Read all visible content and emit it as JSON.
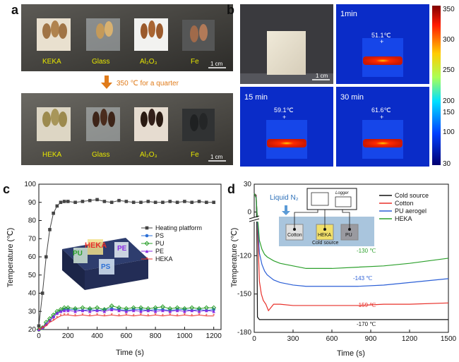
{
  "panels": {
    "a": {
      "letter": "a",
      "top_labels": [
        "KEKA",
        "Glass",
        "Al₂O₃",
        "Fe"
      ],
      "bottom_labels": [
        "HEKA",
        "Glass",
        "Al₂O₃",
        "Fe"
      ],
      "scale_top": "1 cm",
      "scale_bottom": "1 cm",
      "arrow_text": "350 ℃ for a quarter",
      "label_color": "#e6e600",
      "arrow_color": "#e07b1a"
    },
    "b": {
      "letter": "b",
      "scale": "1 cm",
      "images": [
        {
          "time": "1min",
          "temp": "51.1℃"
        },
        {
          "time": "15 min",
          "temp": "59.1℃"
        },
        {
          "time": "30 min",
          "temp": "61.6℃"
        }
      ],
      "colorbar_ticks": [
        "350",
        "300",
        "250",
        "200",
        "150",
        "100",
        "30"
      ]
    },
    "c": {
      "letter": "c",
      "inset_labels": [
        "HEKA",
        "PU",
        "PE",
        "PS"
      ]
    },
    "d": {
      "letter": "d",
      "diagram": {
        "gas": "Liquid N₂",
        "logger": "Logger",
        "samples": [
          "Cotton",
          "HEKA",
          "PU"
        ],
        "base": "Cold source"
      },
      "annotations": [
        "-130 ℃",
        "-143 ℃",
        "-159 ℃",
        "-170 ℃"
      ]
    }
  },
  "chart_data": [
    {
      "type": "line",
      "xlabel": "Time (s)",
      "ylabel": "Temperature (℃)",
      "xlim": [
        0,
        1250
      ],
      "ylim": [
        20,
        100
      ],
      "xticks": [
        0,
        200,
        400,
        600,
        800,
        1000,
        1200
      ],
      "yticks": [
        20,
        30,
        40,
        50,
        60,
        70,
        80,
        90,
        100
      ],
      "legend_position": "right",
      "series": [
        {
          "name": "Heating platform",
          "color": "#444444",
          "marker": "square",
          "x": [
            0,
            25,
            50,
            75,
            100,
            125,
            150,
            175,
            200,
            250,
            300,
            350,
            400,
            450,
            500,
            550,
            600,
            650,
            700,
            750,
            800,
            850,
            900,
            950,
            1000,
            1050,
            1100,
            1150,
            1200
          ],
          "y": [
            22,
            40,
            60,
            75,
            84,
            88,
            90,
            90.5,
            90.5,
            90,
            90.5,
            91,
            91.5,
            90.5,
            90,
            91,
            90.5,
            90,
            90,
            90.5,
            90,
            90,
            90.5,
            90,
            90.5,
            90,
            90.5,
            90,
            90
          ]
        },
        {
          "name": "PS",
          "color": "#2b6fd6",
          "marker": "circle",
          "x": [
            0,
            25,
            50,
            75,
            100,
            125,
            150,
            175,
            200,
            250,
            300,
            350,
            400,
            450,
            500,
            550,
            600,
            650,
            700,
            750,
            800,
            850,
            900,
            950,
            1000,
            1050,
            1100,
            1150,
            1200
          ],
          "y": [
            20,
            21,
            23,
            25,
            27,
            29,
            30,
            31,
            31,
            31,
            30.5,
            31,
            30.5,
            31,
            31.5,
            31,
            30.5,
            31,
            31,
            30.5,
            31,
            31,
            30.5,
            31,
            31,
            30.5,
            31,
            30.5,
            31
          ]
        },
        {
          "name": "PU",
          "color": "#2ca02c",
          "marker": "diamond",
          "x": [
            0,
            25,
            50,
            75,
            100,
            125,
            150,
            175,
            200,
            250,
            300,
            350,
            400,
            450,
            500,
            550,
            600,
            650,
            700,
            750,
            800,
            850,
            900,
            950,
            1000,
            1050,
            1100,
            1150,
            1200
          ],
          "y": [
            20,
            21,
            24,
            26,
            28,
            30,
            31,
            32,
            32,
            31.5,
            32,
            31.5,
            32,
            31,
            33,
            32,
            31.5,
            32,
            32,
            31.5,
            32,
            32.5,
            31.5,
            32,
            31.5,
            32,
            31.5,
            32,
            32
          ]
        },
        {
          "name": "PE",
          "color": "#8a2be2",
          "marker": "triangle",
          "x": [
            0,
            25,
            50,
            75,
            100,
            125,
            150,
            175,
            200,
            250,
            300,
            350,
            400,
            450,
            500,
            550,
            600,
            650,
            700,
            750,
            800,
            850,
            900,
            950,
            1000,
            1050,
            1100,
            1150,
            1200
          ],
          "y": [
            20,
            21,
            23,
            25,
            27,
            29,
            30,
            30.5,
            30.5,
            30,
            30.5,
            30,
            30.5,
            30,
            31,
            30.5,
            30,
            30.5,
            30,
            30.5,
            30,
            30.5,
            30,
            30.5,
            30,
            30.5,
            30,
            30.5,
            30
          ]
        },
        {
          "name": "HEKA",
          "color": "#e8302a",
          "marker": "star",
          "x": [
            0,
            25,
            50,
            75,
            100,
            125,
            150,
            175,
            200,
            250,
            300,
            350,
            400,
            450,
            500,
            550,
            600,
            650,
            700,
            750,
            800,
            850,
            900,
            950,
            1000,
            1050,
            1100,
            1150,
            1200
          ],
          "y": [
            20,
            21,
            22,
            24,
            25,
            26.5,
            27.5,
            28,
            28,
            27.5,
            28,
            27.5,
            28,
            27.5,
            28,
            27.5,
            28,
            27.5,
            28,
            27.5,
            28,
            27.5,
            28,
            27.5,
            28,
            27.5,
            28,
            27.5,
            27.5
          ]
        }
      ]
    },
    {
      "type": "line",
      "xlabel": "Time (s)",
      "ylabel": "Temperature (℃)",
      "xlim": [
        0,
        1500
      ],
      "ylim": [
        -180,
        30
      ],
      "broken_axis": true,
      "xticks": [
        0,
        300,
        600,
        900,
        1200,
        1500
      ],
      "yticks": [
        -180,
        -150,
        -120,
        0,
        30
      ],
      "legend_position": "top-right",
      "series": [
        {
          "name": "Cold source",
          "color": "#111111",
          "x": [
            0,
            15,
            20,
            25,
            40,
            60,
            100,
            200,
            400,
            600,
            800,
            1000,
            1200,
            1500
          ],
          "y": [
            20,
            18,
            -90,
            -168,
            -170,
            -170,
            -170,
            -170,
            -170,
            -170,
            -170,
            -170,
            -170,
            -170
          ]
        },
        {
          "name": "Cotton",
          "color": "#e8302a",
          "x": [
            0,
            15,
            25,
            30,
            40,
            55,
            70,
            90,
            110,
            150,
            200,
            300,
            400,
            600,
            800,
            1000,
            1200,
            1500
          ],
          "y": [
            20,
            17,
            -60,
            -110,
            -140,
            -150,
            -155,
            -158,
            -163,
            -158,
            -158,
            -159,
            -159,
            -159,
            -159,
            -158,
            -158,
            -157
          ]
        },
        {
          "name": "PU aerogel",
          "color": "#2b5fd6",
          "x": [
            0,
            15,
            25,
            30,
            40,
            60,
            80,
            100,
            150,
            200,
            300,
            400,
            600,
            800,
            1000,
            1200,
            1500
          ],
          "y": [
            20,
            16,
            -60,
            -100,
            -118,
            -127,
            -132,
            -135,
            -139,
            -141,
            -143,
            -144,
            -144,
            -144,
            -143,
            -141,
            -138
          ]
        },
        {
          "name": "HEKA",
          "color": "#2ca02c",
          "x": [
            0,
            15,
            25,
            30,
            40,
            60,
            80,
            100,
            150,
            200,
            300,
            400,
            500,
            600,
            800,
            1000,
            1200,
            1500
          ],
          "y": [
            20,
            15,
            -50,
            -95,
            -108,
            -115,
            -119,
            -121,
            -124,
            -126,
            -128,
            -130,
            -130,
            -130,
            -129,
            -128,
            -126,
            -122
          ]
        }
      ]
    }
  ]
}
